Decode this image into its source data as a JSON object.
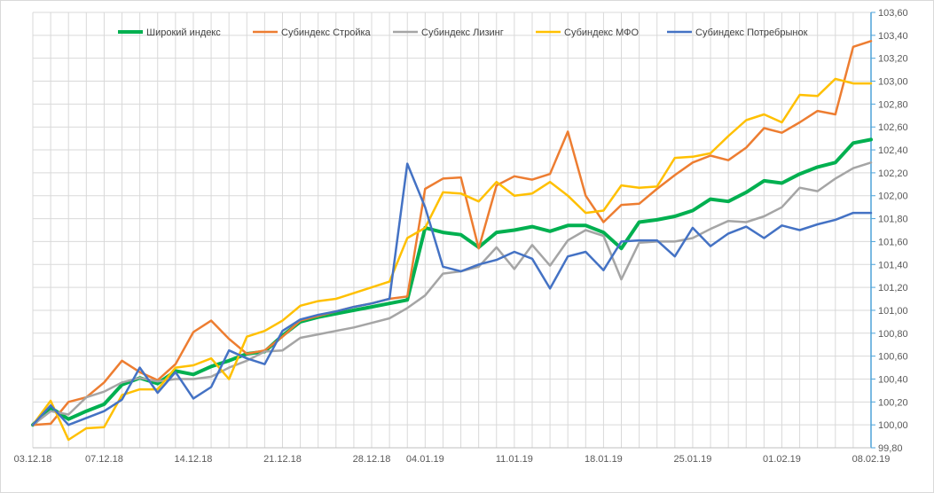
{
  "chart_data": {
    "type": "line",
    "title": "",
    "xlabel": "",
    "ylabel": "",
    "ylim": [
      99.8,
      103.6
    ],
    "y_ticks": [
      "99,80",
      "100,00",
      "100,20",
      "100,40",
      "100,60",
      "100,80",
      "101,00",
      "101,20",
      "101,40",
      "101,60",
      "101,80",
      "102,00",
      "102,20",
      "102,40",
      "102,60",
      "102,80",
      "103,00",
      "103,20",
      "103,40",
      "103,60"
    ],
    "x_tick_labels": [
      {
        "index": 0,
        "label": "03.12.18"
      },
      {
        "index": 4,
        "label": "07.12.18"
      },
      {
        "index": 9,
        "label": "14.12.18"
      },
      {
        "index": 14,
        "label": "21.12.18"
      },
      {
        "index": 19,
        "label": "28.12.18"
      },
      {
        "index": 22,
        "label": "04.01.19"
      },
      {
        "index": 27,
        "label": "11.01.19"
      },
      {
        "index": 32,
        "label": "18.01.19"
      },
      {
        "index": 37,
        "label": "25.01.19"
      },
      {
        "index": 42,
        "label": "01.02.19"
      },
      {
        "index": 47,
        "label": "08.02.19"
      }
    ],
    "x": [
      "03.12.18",
      "04.12.18",
      "05.12.18",
      "06.12.18",
      "07.12.18",
      "10.12.18",
      "11.12.18",
      "12.12.18",
      "13.12.18",
      "14.12.18",
      "17.12.18",
      "18.12.18",
      "19.12.18",
      "20.12.18",
      "21.12.18",
      "24.12.18",
      "25.12.18",
      "26.12.18",
      "27.12.18",
      "28.12.18",
      "29.12.18",
      "03.01.19",
      "04.01.19",
      "08.01.19",
      "09.01.19",
      "10.01.19",
      "11.01.19",
      "14.01.19",
      "15.01.19",
      "16.01.19",
      "17.01.19",
      "18.01.19",
      "21.01.19",
      "22.01.19",
      "23.01.19",
      "24.01.19",
      "25.01.19",
      "28.01.19",
      "29.01.19",
      "30.01.19",
      "31.01.19",
      "01.02.19",
      "04.02.19",
      "05.02.19",
      "06.02.19",
      "07.02.19",
      "08.02.19",
      "08.02.19"
    ],
    "legend_position": "top",
    "grid": true,
    "series": [
      {
        "name": "Широкий индекс",
        "color": "#00b050",
        "width": 4,
        "values": [
          100.0,
          100.15,
          100.05,
          100.12,
          100.18,
          100.35,
          100.41,
          100.36,
          100.47,
          100.44,
          100.51,
          100.56,
          100.62,
          100.64,
          100.78,
          100.9,
          100.94,
          100.97,
          101.0,
          101.03,
          101.06,
          101.09,
          101.72,
          101.68,
          101.66,
          101.55,
          101.68,
          101.7,
          101.73,
          101.69,
          101.74,
          101.74,
          101.68,
          101.54,
          101.77,
          101.79,
          101.82,
          101.87,
          101.97,
          101.95,
          102.03,
          102.13,
          102.11,
          102.19,
          102.25,
          102.29,
          102.46,
          102.49
        ]
      },
      {
        "name": "Субиндекс Стройка",
        "color": "#ed7d31",
        "width": 2.5,
        "values": [
          100.0,
          100.01,
          100.2,
          100.24,
          100.37,
          100.56,
          100.46,
          100.39,
          100.53,
          100.81,
          100.91,
          100.75,
          100.62,
          100.65,
          100.77,
          100.91,
          100.95,
          100.99,
          101.03,
          101.06,
          101.1,
          101.12,
          102.06,
          102.15,
          102.16,
          101.54,
          102.09,
          102.17,
          102.14,
          102.19,
          102.56,
          102.0,
          101.77,
          101.92,
          101.93,
          102.06,
          102.18,
          102.29,
          102.35,
          102.31,
          102.42,
          102.59,
          102.55,
          102.64,
          102.74,
          102.71,
          103.3,
          103.35
        ]
      },
      {
        "name": "Субиндекс Лизинг",
        "color": "#a5a5a5",
        "width": 2.5,
        "values": [
          100.0,
          100.12,
          100.09,
          100.24,
          100.29,
          100.37,
          100.41,
          100.38,
          100.4,
          100.4,
          100.42,
          100.5,
          100.56,
          100.64,
          100.65,
          100.76,
          100.79,
          100.82,
          100.85,
          100.89,
          100.93,
          101.02,
          101.13,
          101.32,
          101.34,
          101.38,
          101.55,
          101.36,
          101.57,
          101.39,
          101.61,
          101.7,
          101.65,
          101.27,
          101.59,
          101.6,
          101.6,
          101.63,
          101.71,
          101.78,
          101.77,
          101.82,
          101.9,
          102.07,
          102.04,
          102.15,
          102.24,
          102.29
        ]
      },
      {
        "name": "Субиндекс МФО",
        "color": "#ffc000",
        "width": 2.5,
        "values": [
          100.0,
          100.21,
          99.87,
          99.97,
          99.98,
          100.26,
          100.31,
          100.31,
          100.5,
          100.52,
          100.58,
          100.4,
          100.77,
          100.82,
          100.91,
          101.04,
          101.08,
          101.1,
          101.15,
          101.2,
          101.25,
          101.63,
          101.72,
          102.03,
          102.02,
          101.95,
          102.12,
          102.0,
          102.02,
          102.12,
          102.0,
          101.85,
          101.87,
          102.09,
          102.07,
          102.08,
          102.33,
          102.34,
          102.37,
          102.52,
          102.66,
          102.71,
          102.64,
          102.88,
          102.87,
          103.02,
          102.98,
          102.98
        ]
      },
      {
        "name": "Субиндекс Потребрынок",
        "color": "#4472c4",
        "width": 2.5,
        "values": [
          100.0,
          100.17,
          100.0,
          100.06,
          100.12,
          100.22,
          100.5,
          100.28,
          100.46,
          100.23,
          100.33,
          100.65,
          100.58,
          100.53,
          100.82,
          100.92,
          100.96,
          100.99,
          101.03,
          101.06,
          101.1,
          102.28,
          101.9,
          101.38,
          101.34,
          101.4,
          101.44,
          101.51,
          101.45,
          101.19,
          101.47,
          101.51,
          101.35,
          101.6,
          101.61,
          101.61,
          101.47,
          101.72,
          101.56,
          101.67,
          101.73,
          101.63,
          101.74,
          101.7,
          101.75,
          101.79,
          101.85,
          101.85
        ]
      }
    ]
  }
}
